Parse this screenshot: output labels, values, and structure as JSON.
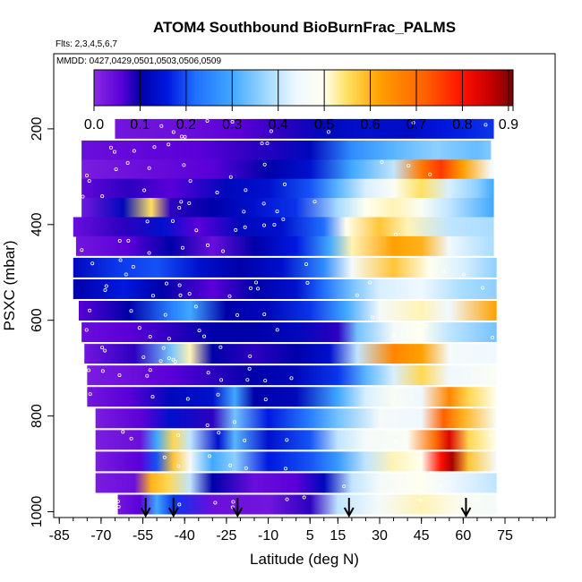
{
  "chart_data": {
    "type": "heatmap",
    "title": "ATOM4 Southbound BioBurnFrac_PALMS",
    "flights_note": "Flts: 2,3,4,5,6,7",
    "dates_note": "MMDD: 0427,0429,0501,0503,0506,0509",
    "xlabel": "Latitude (deg N)",
    "ylabel": "PSXC (mbar)",
    "x_ticks": [
      "-85",
      "-70",
      "-55",
      "-40",
      "-25",
      "-10",
      "5",
      "15",
      "30",
      "45",
      "60",
      "75"
    ],
    "x_tick_values": [
      -85,
      -70,
      -55,
      -40,
      -25,
      -10,
      5,
      15,
      30,
      45,
      60,
      75
    ],
    "y_ticks": [
      "200",
      "400",
      "600",
      "800",
      "1000"
    ],
    "y_tick_values": [
      200,
      400,
      600,
      800,
      1000
    ],
    "xlim": [
      -87,
      93
    ],
    "ylim": [
      1015,
      0
    ],
    "colorbar": {
      "ticks": [
        "0.0",
        "0.1",
        "0.2",
        "0.3",
        "0.4",
        "0.5",
        "0.6",
        "0.7",
        "0.8",
        "0.9"
      ],
      "tick_values": [
        0,
        0.1,
        0.2,
        0.3,
        0.4,
        0.5,
        0.6,
        0.7,
        0.8,
        0.9
      ],
      "range": [
        0,
        0.91
      ],
      "stops": [
        {
          "v": 0.0,
          "c": "#8a2be2"
        },
        {
          "v": 0.06,
          "c": "#5a00d8"
        },
        {
          "v": 0.1,
          "c": "#0000a8"
        },
        {
          "v": 0.16,
          "c": "#0018e0"
        },
        {
          "v": 0.22,
          "c": "#2070ff"
        },
        {
          "v": 0.3,
          "c": "#40a8ff"
        },
        {
          "v": 0.38,
          "c": "#a8dcff"
        },
        {
          "v": 0.44,
          "c": "#f0f8ff"
        },
        {
          "v": 0.5,
          "c": "#fffff0"
        },
        {
          "v": 0.55,
          "c": "#ffe060"
        },
        {
          "v": 0.62,
          "c": "#ffa000"
        },
        {
          "v": 0.72,
          "c": "#ff6000"
        },
        {
          "v": 0.8,
          "c": "#ff1000"
        },
        {
          "v": 0.86,
          "c": "#c80000"
        },
        {
          "v": 0.91,
          "c": "#7a0000"
        }
      ]
    },
    "arrow_latitudes": [
      -54,
      -44,
      -21,
      19,
      61
    ],
    "levels": [
      {
        "p": 200,
        "lat_min": -65,
        "lat_max": 71,
        "profile": [
          [
            -65,
            0.03
          ],
          [
            -40,
            0.04
          ],
          [
            -20,
            0.06
          ],
          [
            -5,
            0.08
          ],
          [
            10,
            0.12
          ],
          [
            25,
            0.14
          ],
          [
            40,
            0.13
          ],
          [
            55,
            0.16
          ],
          [
            71,
            0.18
          ]
        ]
      },
      {
        "p": 245,
        "lat_min": -77,
        "lat_max": 70,
        "profile": [
          [
            -77,
            0.04
          ],
          [
            -55,
            0.05
          ],
          [
            -35,
            0.06
          ],
          [
            -15,
            0.08
          ],
          [
            5,
            0.12
          ],
          [
            20,
            0.26
          ],
          [
            35,
            0.32
          ],
          [
            50,
            0.36
          ],
          [
            65,
            0.33
          ],
          [
            70,
            0.35
          ]
        ]
      },
      {
        "p": 285,
        "lat_min": -77,
        "lat_max": 71,
        "profile": [
          [
            -77,
            0.02
          ],
          [
            -55,
            0.04
          ],
          [
            -30,
            0.06
          ],
          [
            -10,
            0.1
          ],
          [
            5,
            0.14
          ],
          [
            20,
            0.3
          ],
          [
            35,
            0.4
          ],
          [
            45,
            0.68
          ],
          [
            52,
            0.76
          ],
          [
            60,
            0.62
          ],
          [
            70,
            0.46
          ]
        ]
      },
      {
        "p": 325,
        "lat_min": -77,
        "lat_max": 71,
        "profile": [
          [
            -77,
            0.05
          ],
          [
            -60,
            0.08
          ],
          [
            -45,
            0.06
          ],
          [
            -25,
            0.12
          ],
          [
            -10,
            0.14
          ],
          [
            5,
            0.2
          ],
          [
            15,
            0.32
          ],
          [
            25,
            0.42
          ],
          [
            35,
            0.48
          ],
          [
            45,
            0.55
          ],
          [
            55,
            0.42
          ],
          [
            65,
            0.36
          ],
          [
            71,
            0.3
          ]
        ]
      },
      {
        "p": 365,
        "lat_min": -77,
        "lat_max": 71,
        "profile": [
          [
            -77,
            0.03
          ],
          [
            -62,
            0.12
          ],
          [
            -52,
            0.55
          ],
          [
            -45,
            0.08
          ],
          [
            -30,
            0.1
          ],
          [
            -15,
            0.14
          ],
          [
            0,
            0.18
          ],
          [
            15,
            0.38
          ],
          [
            25,
            0.5
          ],
          [
            35,
            0.52
          ],
          [
            45,
            0.48
          ],
          [
            55,
            0.4
          ],
          [
            71,
            0.3
          ]
        ]
      },
      {
        "p": 405,
        "lat_min": -80,
        "lat_max": 71,
        "profile": [
          [
            -80,
            0.04
          ],
          [
            -62,
            0.08
          ],
          [
            -48,
            0.14
          ],
          [
            -35,
            0.06
          ],
          [
            -20,
            0.12
          ],
          [
            -5,
            0.14
          ],
          [
            10,
            0.22
          ],
          [
            18,
            0.5
          ],
          [
            30,
            0.58
          ],
          [
            40,
            0.52
          ],
          [
            55,
            0.4
          ],
          [
            71,
            0.38
          ]
        ]
      },
      {
        "p": 445,
        "lat_min": -79,
        "lat_max": 71,
        "profile": [
          [
            -79,
            0.03
          ],
          [
            -60,
            0.06
          ],
          [
            -45,
            0.1
          ],
          [
            -30,
            0.04
          ],
          [
            -15,
            0.1
          ],
          [
            0,
            0.16
          ],
          [
            12,
            0.3
          ],
          [
            20,
            0.52
          ],
          [
            35,
            0.62
          ],
          [
            45,
            0.6
          ],
          [
            55,
            0.44
          ],
          [
            71,
            0.38
          ]
        ]
      },
      {
        "p": 490,
        "lat_min": -80,
        "lat_max": 72,
        "profile": [
          [
            -80,
            0.12
          ],
          [
            -65,
            0.18
          ],
          [
            -50,
            0.2
          ],
          [
            -35,
            0.14
          ],
          [
            -20,
            0.1
          ],
          [
            -5,
            0.14
          ],
          [
            10,
            0.26
          ],
          [
            20,
            0.46
          ],
          [
            35,
            0.58
          ],
          [
            48,
            0.5
          ],
          [
            60,
            0.42
          ],
          [
            72,
            0.36
          ]
        ]
      },
      {
        "p": 535,
        "lat_min": -80,
        "lat_max": 72,
        "profile": [
          [
            -80,
            0.1
          ],
          [
            -62,
            0.16
          ],
          [
            -48,
            0.1
          ],
          [
            -30,
            0.06
          ],
          [
            -15,
            0.1
          ],
          [
            0,
            0.14
          ],
          [
            10,
            0.22
          ],
          [
            20,
            0.34
          ],
          [
            30,
            0.42
          ],
          [
            45,
            0.44
          ],
          [
            60,
            0.38
          ],
          [
            72,
            0.36
          ]
        ]
      },
      {
        "p": 580,
        "lat_min": -78,
        "lat_max": 72,
        "profile": [
          [
            -78,
            0.06
          ],
          [
            -60,
            0.1
          ],
          [
            -45,
            0.24
          ],
          [
            -38,
            0.3
          ],
          [
            -25,
            0.1
          ],
          [
            -10,
            0.12
          ],
          [
            5,
            0.18
          ],
          [
            18,
            0.3
          ],
          [
            30,
            0.46
          ],
          [
            45,
            0.52
          ],
          [
            55,
            0.44
          ],
          [
            72,
            0.62
          ]
        ]
      },
      {
        "p": 625,
        "lat_min": -77,
        "lat_max": 72,
        "profile": [
          [
            -77,
            0.04
          ],
          [
            -60,
            0.06
          ],
          [
            -45,
            0.08
          ],
          [
            -30,
            0.1
          ],
          [
            -15,
            0.1
          ],
          [
            0,
            0.12
          ],
          [
            15,
            0.08
          ],
          [
            22,
            0.34
          ],
          [
            35,
            0.46
          ],
          [
            45,
            0.5
          ],
          [
            55,
            0.4
          ],
          [
            72,
            0.34
          ]
        ]
      },
      {
        "p": 670,
        "lat_min": -76,
        "lat_max": 72,
        "profile": [
          [
            -76,
            0.03
          ],
          [
            -58,
            0.08
          ],
          [
            -45,
            0.34
          ],
          [
            -38,
            0.52
          ],
          [
            -30,
            0.1
          ],
          [
            -15,
            0.08
          ],
          [
            0,
            0.1
          ],
          [
            12,
            0.14
          ],
          [
            22,
            0.4
          ],
          [
            35,
            0.66
          ],
          [
            45,
            0.62
          ],
          [
            55,
            0.46
          ],
          [
            72,
            0.44
          ]
        ]
      },
      {
        "p": 715,
        "lat_min": -75,
        "lat_max": 72,
        "profile": [
          [
            -75,
            0.02
          ],
          [
            -58,
            0.04
          ],
          [
            -45,
            0.06
          ],
          [
            -30,
            0.08
          ],
          [
            -15,
            0.1
          ],
          [
            0,
            0.12
          ],
          [
            15,
            0.18
          ],
          [
            25,
            0.32
          ],
          [
            35,
            0.42
          ],
          [
            45,
            0.56
          ],
          [
            55,
            0.44
          ],
          [
            72,
            0.48
          ]
        ]
      },
      {
        "p": 760,
        "lat_min": -75,
        "lat_max": 72,
        "profile": [
          [
            -75,
            0.03
          ],
          [
            -60,
            0.06
          ],
          [
            -45,
            0.12
          ],
          [
            -30,
            0.14
          ],
          [
            -22,
            0.3
          ],
          [
            -15,
            0.1
          ],
          [
            0,
            0.12
          ],
          [
            15,
            0.3
          ],
          [
            25,
            0.42
          ],
          [
            35,
            0.48
          ],
          [
            45,
            0.44
          ],
          [
            55,
            0.66
          ],
          [
            62,
            0.56
          ],
          [
            72,
            0.5
          ]
        ]
      },
      {
        "p": 805,
        "lat_min": -72,
        "lat_max": 72,
        "profile": [
          [
            -72,
            0.02
          ],
          [
            -55,
            0.06
          ],
          [
            -45,
            0.14
          ],
          [
            -30,
            0.08
          ],
          [
            -22,
            0.34
          ],
          [
            -10,
            0.16
          ],
          [
            5,
            0.24
          ],
          [
            15,
            0.34
          ],
          [
            30,
            0.46
          ],
          [
            45,
            0.44
          ],
          [
            53,
            0.72
          ],
          [
            60,
            0.6
          ],
          [
            72,
            0.48
          ]
        ]
      },
      {
        "p": 850,
        "lat_min": -72,
        "lat_max": 72,
        "profile": [
          [
            -72,
            0.02
          ],
          [
            -56,
            0.04
          ],
          [
            -50,
            0.3
          ],
          [
            -44,
            0.56
          ],
          [
            -38,
            0.4
          ],
          [
            -28,
            0.14
          ],
          [
            -22,
            0.32
          ],
          [
            -10,
            0.14
          ],
          [
            5,
            0.2
          ],
          [
            15,
            0.4
          ],
          [
            25,
            0.46
          ],
          [
            40,
            0.48
          ],
          [
            50,
            0.7
          ],
          [
            55,
            0.84
          ],
          [
            62,
            0.56
          ],
          [
            72,
            0.5
          ]
        ]
      },
      {
        "p": 895,
        "lat_min": -72,
        "lat_max": 72,
        "profile": [
          [
            -72,
            0.02
          ],
          [
            -56,
            0.06
          ],
          [
            -50,
            0.2
          ],
          [
            -44,
            0.58
          ],
          [
            -38,
            0.46
          ],
          [
            -30,
            0.3
          ],
          [
            -22,
            0.36
          ],
          [
            -10,
            0.16
          ],
          [
            5,
            0.2
          ],
          [
            15,
            0.28
          ],
          [
            25,
            0.4
          ],
          [
            35,
            0.52
          ],
          [
            45,
            0.5
          ],
          [
            52,
            0.8
          ],
          [
            56,
            0.88
          ],
          [
            62,
            0.58
          ],
          [
            72,
            0.46
          ]
        ]
      },
      {
        "p": 940,
        "lat_min": -72,
        "lat_max": 72,
        "profile": [
          [
            -72,
            0.02
          ],
          [
            -58,
            0.04
          ],
          [
            -52,
            0.6
          ],
          [
            -46,
            0.56
          ],
          [
            -38,
            0.4
          ],
          [
            -30,
            0.1
          ],
          [
            -15,
            0.04
          ],
          [
            0,
            0.06
          ],
          [
            10,
            0.12
          ],
          [
            20,
            0.4
          ],
          [
            30,
            0.46
          ],
          [
            45,
            0.5
          ],
          [
            55,
            0.44
          ],
          [
            72,
            0.4
          ]
        ]
      },
      {
        "p": 985,
        "lat_min": -64,
        "lat_max": 72,
        "profile": [
          [
            -64,
            0.03
          ],
          [
            -56,
            0.06
          ],
          [
            -50,
            0.3
          ],
          [
            -44,
            0.18
          ],
          [
            -30,
            0.04
          ],
          [
            -10,
            0.03
          ],
          [
            5,
            0.08
          ],
          [
            15,
            0.4
          ],
          [
            30,
            0.46
          ],
          [
            45,
            0.52
          ],
          [
            60,
            0.48
          ],
          [
            72,
            0.46
          ]
        ]
      }
    ]
  }
}
